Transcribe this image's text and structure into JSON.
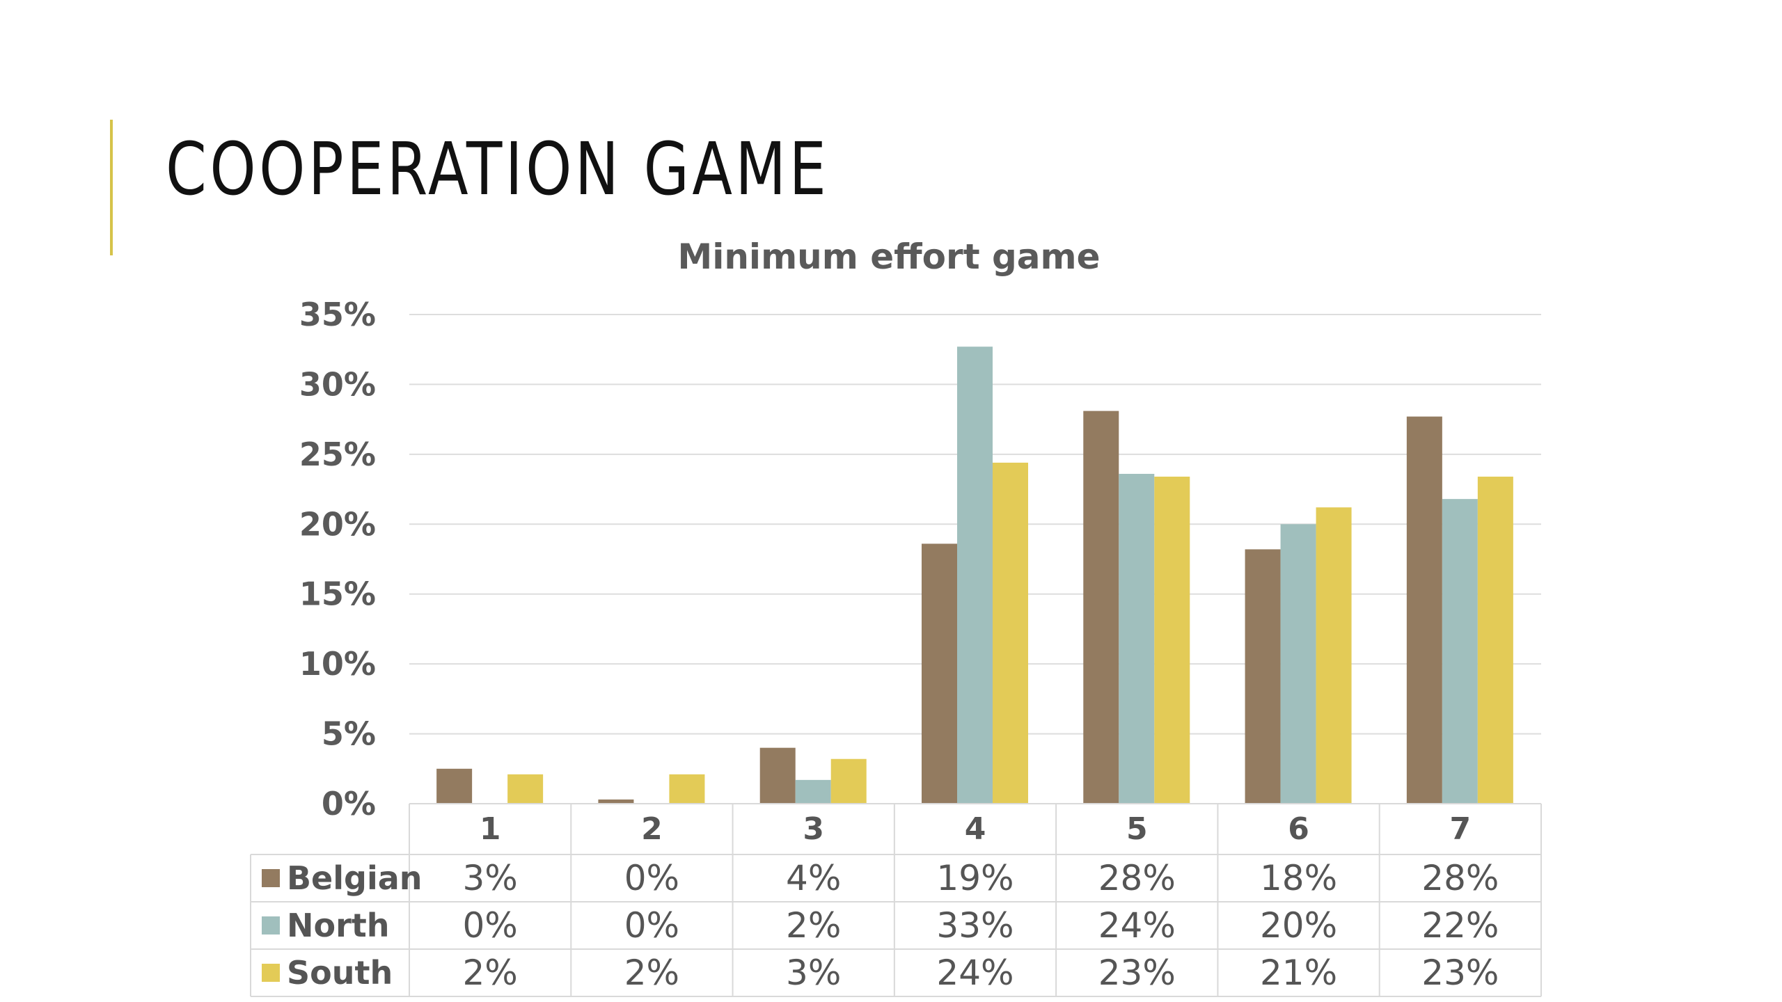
{
  "slide": {
    "title": "COOPERATION GAME"
  },
  "colors": {
    "accent": "#d6c34a",
    "gridline": "#dddddd",
    "table_border": "#d9d9d9"
  },
  "chart_data": {
    "type": "bar",
    "title": "Minimum effort game",
    "xlabel": "",
    "ylabel": "",
    "categories": [
      "1",
      "2",
      "3",
      "4",
      "5",
      "6",
      "7"
    ],
    "ylim": [
      0,
      0.35
    ],
    "yticks": [
      0,
      0.05,
      0.1,
      0.15,
      0.2,
      0.25,
      0.3,
      0.35
    ],
    "ytick_labels": [
      "0%",
      "5%",
      "10%",
      "15%",
      "20%",
      "25%",
      "30%",
      "35%"
    ],
    "grid": true,
    "legend": "data-table",
    "series": [
      {
        "name": "Belgian",
        "color": "#937b60",
        "values": [
          0.025,
          0.003,
          0.04,
          0.186,
          0.281,
          0.182,
          0.277
        ],
        "table_labels": [
          "3%",
          "0%",
          "4%",
          "19%",
          "28%",
          "18%",
          "28%"
        ]
      },
      {
        "name": "North",
        "color": "#a0bfbd",
        "values": [
          0.0,
          0.0,
          0.017,
          0.327,
          0.236,
          0.2,
          0.218
        ],
        "table_labels": [
          "0%",
          "0%",
          "2%",
          "33%",
          "24%",
          "20%",
          "22%"
        ]
      },
      {
        "name": "South",
        "color": "#e3cb57",
        "values": [
          0.021,
          0.021,
          0.032,
          0.244,
          0.234,
          0.212,
          0.234
        ],
        "table_labels": [
          "2%",
          "2%",
          "3%",
          "24%",
          "23%",
          "21%",
          "23%"
        ]
      }
    ]
  }
}
